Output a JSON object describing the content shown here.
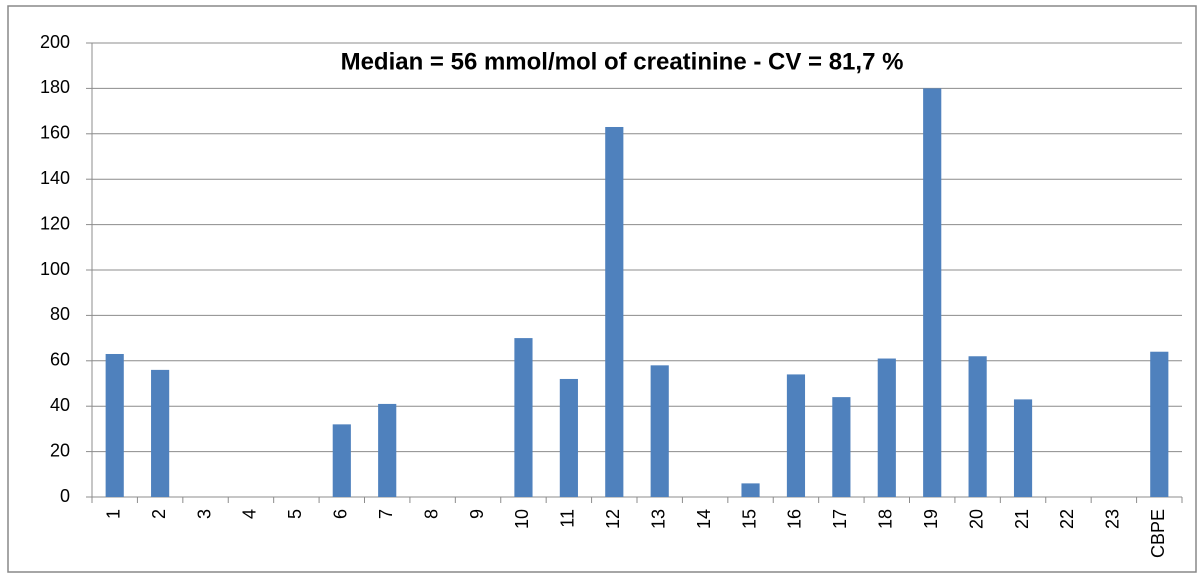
{
  "chart_data": {
    "type": "bar",
    "title": "Median = 56 mmol/mol of creatinine - CV = 81,7 %",
    "categories": [
      "1",
      "2",
      "3",
      "4",
      "5",
      "6",
      "7",
      "8",
      "9",
      "10",
      "11",
      "12",
      "13",
      "14",
      "15",
      "16",
      "17",
      "18",
      "19",
      "20",
      "21",
      "22",
      "23",
      "CBPE"
    ],
    "values": [
      63,
      56,
      null,
      null,
      null,
      32,
      41,
      null,
      null,
      70,
      52,
      163,
      58,
      null,
      6,
      54,
      44,
      61,
      180,
      62,
      43,
      null,
      null,
      64
    ],
    "color": "#4f81bd",
    "ylim": [
      0,
      200
    ],
    "yticks": [
      0,
      20,
      40,
      60,
      80,
      100,
      120,
      140,
      160,
      180,
      200
    ],
    "grid": true
  }
}
